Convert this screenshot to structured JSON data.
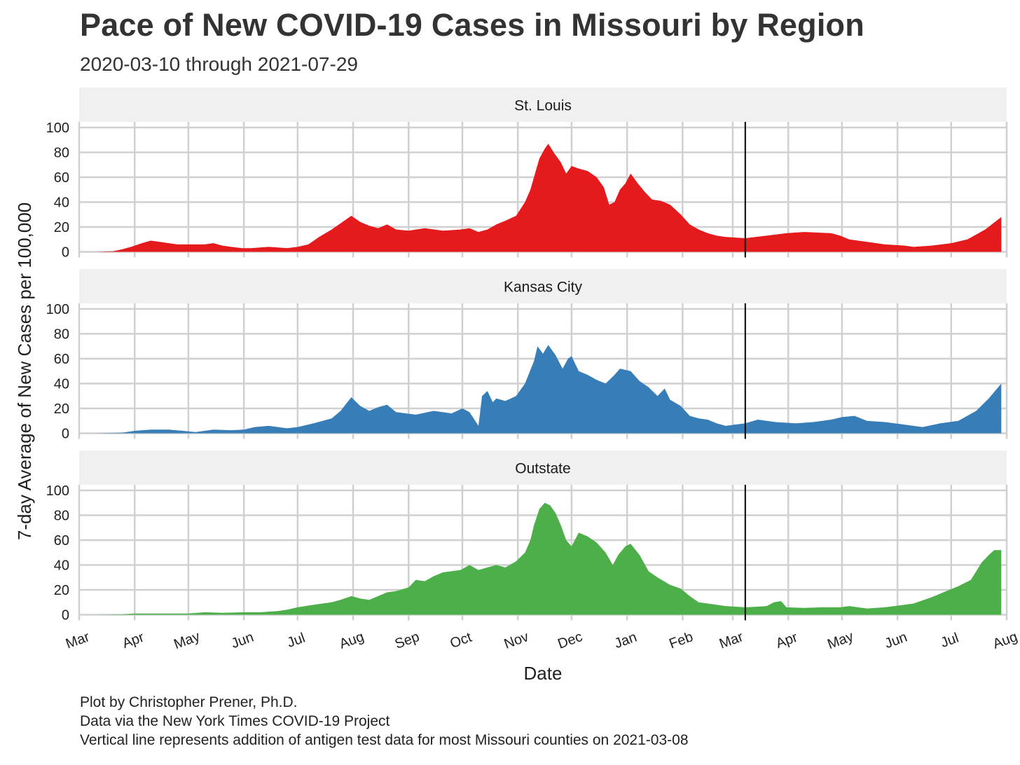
{
  "title": "Pace of New COVID-19 Cases in Missouri by Region",
  "subtitle": "2020-03-10 through 2021-07-29",
  "caption": [
    "Plot by Christopher Prener, Ph.D.",
    "Data via the New York Times COVID-19 Project",
    "Vertical line represents addition of antigen test data for most Missouri counties on 2021-03-08"
  ],
  "chart_data": {
    "type": "area",
    "facets": [
      "St. Louis",
      "Kansas City",
      "Outstate"
    ],
    "xlabel": "Date",
    "ylabel": "7-day Average of New Cases per 100,000",
    "xlim": [
      "2020-03-01",
      "2021-08-01"
    ],
    "ylim": [
      0,
      100
    ],
    "x_ticks": [
      {
        "date": "2020-03-01",
        "label": "Mar"
      },
      {
        "date": "2020-04-01",
        "label": "Apr"
      },
      {
        "date": "2020-05-01",
        "label": "May"
      },
      {
        "date": "2020-06-01",
        "label": "Jun"
      },
      {
        "date": "2020-07-01",
        "label": "Jul"
      },
      {
        "date": "2020-08-01",
        "label": "Aug"
      },
      {
        "date": "2020-09-01",
        "label": "Sep"
      },
      {
        "date": "2020-10-01",
        "label": "Oct"
      },
      {
        "date": "2020-11-01",
        "label": "Nov"
      },
      {
        "date": "2020-12-01",
        "label": "Dec"
      },
      {
        "date": "2021-01-01",
        "label": "Jan"
      },
      {
        "date": "2021-02-01",
        "label": "Feb"
      },
      {
        "date": "2021-03-01",
        "label": "Mar"
      },
      {
        "date": "2021-04-01",
        "label": "Apr"
      },
      {
        "date": "2021-05-01",
        "label": "May"
      },
      {
        "date": "2021-06-01",
        "label": "Jun"
      },
      {
        "date": "2021-07-01",
        "label": "Jul"
      },
      {
        "date": "2021-08-01",
        "label": "Aug"
      }
    ],
    "y_ticks": [
      0,
      20,
      40,
      60,
      80,
      100
    ],
    "vline_date": "2021-03-08",
    "grid": true,
    "legend": "none",
    "series": [
      {
        "facet": "St. Louis",
        "color": "#E41A1C",
        "points": [
          [
            "2020-03-10",
            0
          ],
          [
            "2020-03-20",
            0.5
          ],
          [
            "2020-03-25",
            2
          ],
          [
            "2020-03-30",
            4
          ],
          [
            "2020-04-05",
            7
          ],
          [
            "2020-04-10",
            9
          ],
          [
            "2020-04-15",
            8
          ],
          [
            "2020-04-20",
            7
          ],
          [
            "2020-04-25",
            6
          ],
          [
            "2020-05-01",
            6
          ],
          [
            "2020-05-10",
            6
          ],
          [
            "2020-05-15",
            7
          ],
          [
            "2020-05-20",
            5
          ],
          [
            "2020-05-25",
            4
          ],
          [
            "2020-05-31",
            3
          ],
          [
            "2020-06-05",
            3
          ],
          [
            "2020-06-10",
            3.5
          ],
          [
            "2020-06-15",
            4
          ],
          [
            "2020-06-20",
            3.5
          ],
          [
            "2020-06-25",
            3
          ],
          [
            "2020-07-01",
            4
          ],
          [
            "2020-07-07",
            6
          ],
          [
            "2020-07-13",
            12
          ],
          [
            "2020-07-20",
            18
          ],
          [
            "2020-07-25",
            23
          ],
          [
            "2020-07-31",
            29
          ],
          [
            "2020-08-05",
            24
          ],
          [
            "2020-08-10",
            21
          ],
          [
            "2020-08-15",
            19
          ],
          [
            "2020-08-20",
            22
          ],
          [
            "2020-08-25",
            18
          ],
          [
            "2020-09-01",
            17
          ],
          [
            "2020-09-10",
            19
          ],
          [
            "2020-09-20",
            17
          ],
          [
            "2020-09-30",
            18
          ],
          [
            "2020-10-05",
            19
          ],
          [
            "2020-10-10",
            16
          ],
          [
            "2020-10-15",
            18
          ],
          [
            "2020-10-20",
            22
          ],
          [
            "2020-10-25",
            25
          ],
          [
            "2020-10-31",
            29
          ],
          [
            "2020-11-05",
            40
          ],
          [
            "2020-11-08",
            50
          ],
          [
            "2020-11-10",
            60
          ],
          [
            "2020-11-13",
            75
          ],
          [
            "2020-11-16",
            83
          ],
          [
            "2020-11-18",
            87
          ],
          [
            "2020-11-21",
            80
          ],
          [
            "2020-11-25",
            72
          ],
          [
            "2020-11-28",
            63
          ],
          [
            "2020-12-01",
            69
          ],
          [
            "2020-12-05",
            67
          ],
          [
            "2020-12-10",
            65
          ],
          [
            "2020-12-15",
            60
          ],
          [
            "2020-12-19",
            52
          ],
          [
            "2020-12-22",
            38
          ],
          [
            "2020-12-25",
            40
          ],
          [
            "2020-12-28",
            50
          ],
          [
            "2020-12-31",
            55
          ],
          [
            "2021-01-03",
            63
          ],
          [
            "2021-01-07",
            55
          ],
          [
            "2021-01-11",
            48
          ],
          [
            "2021-01-15",
            42
          ],
          [
            "2021-01-20",
            41
          ],
          [
            "2021-01-25",
            38
          ],
          [
            "2021-01-31",
            30
          ],
          [
            "2021-02-05",
            22
          ],
          [
            "2021-02-10",
            18
          ],
          [
            "2021-02-15",
            15
          ],
          [
            "2021-02-20",
            13
          ],
          [
            "2021-02-25",
            12
          ],
          [
            "2021-03-08",
            11
          ],
          [
            "2021-03-20",
            13
          ],
          [
            "2021-03-31",
            15
          ],
          [
            "2021-04-10",
            16
          ],
          [
            "2021-04-25",
            15
          ],
          [
            "2021-04-30",
            13
          ],
          [
            "2021-05-05",
            10
          ],
          [
            "2021-05-15",
            8
          ],
          [
            "2021-05-25",
            6
          ],
          [
            "2021-06-05",
            5
          ],
          [
            "2021-06-10",
            4
          ],
          [
            "2021-06-20",
            5
          ],
          [
            "2021-07-01",
            7
          ],
          [
            "2021-07-10",
            10
          ],
          [
            "2021-07-20",
            18
          ],
          [
            "2021-07-29",
            28
          ]
        ]
      },
      {
        "facet": "Kansas City",
        "color": "#377EB8",
        "points": [
          [
            "2020-03-10",
            0
          ],
          [
            "2020-03-25",
            0.5
          ],
          [
            "2020-04-01",
            2
          ],
          [
            "2020-04-10",
            3
          ],
          [
            "2020-04-20",
            3
          ],
          [
            "2020-04-28",
            2
          ],
          [
            "2020-05-05",
            1
          ],
          [
            "2020-05-10",
            2
          ],
          [
            "2020-05-15",
            3
          ],
          [
            "2020-05-25",
            2.5
          ],
          [
            "2020-06-01",
            3
          ],
          [
            "2020-06-07",
            5
          ],
          [
            "2020-06-15",
            6
          ],
          [
            "2020-06-25",
            4
          ],
          [
            "2020-07-01",
            5
          ],
          [
            "2020-07-10",
            8
          ],
          [
            "2020-07-20",
            12
          ],
          [
            "2020-07-25",
            18
          ],
          [
            "2020-07-31",
            29
          ],
          [
            "2020-08-05",
            22
          ],
          [
            "2020-08-10",
            18
          ],
          [
            "2020-08-15",
            21
          ],
          [
            "2020-08-20",
            23
          ],
          [
            "2020-08-25",
            17
          ],
          [
            "2020-09-05",
            15
          ],
          [
            "2020-09-15",
            18
          ],
          [
            "2020-09-25",
            16
          ],
          [
            "2020-10-01",
            20
          ],
          [
            "2020-10-05",
            17
          ],
          [
            "2020-10-10",
            6
          ],
          [
            "2020-10-12",
            30
          ],
          [
            "2020-10-15",
            34
          ],
          [
            "2020-10-18",
            25
          ],
          [
            "2020-10-20",
            28
          ],
          [
            "2020-10-25",
            26
          ],
          [
            "2020-10-31",
            30
          ],
          [
            "2020-11-05",
            40
          ],
          [
            "2020-11-10",
            58
          ],
          [
            "2020-11-12",
            70
          ],
          [
            "2020-11-15",
            64
          ],
          [
            "2020-11-18",
            71
          ],
          [
            "2020-11-22",
            63
          ],
          [
            "2020-11-26",
            52
          ],
          [
            "2020-11-29",
            60
          ],
          [
            "2020-12-01",
            62
          ],
          [
            "2020-12-05",
            50
          ],
          [
            "2020-12-10",
            47
          ],
          [
            "2020-12-15",
            43
          ],
          [
            "2020-12-20",
            40
          ],
          [
            "2020-12-25",
            47
          ],
          [
            "2020-12-28",
            52
          ],
          [
            "2021-01-03",
            50
          ],
          [
            "2021-01-08",
            42
          ],
          [
            "2021-01-13",
            37
          ],
          [
            "2021-01-18",
            30
          ],
          [
            "2021-01-22",
            36
          ],
          [
            "2021-01-25",
            27
          ],
          [
            "2021-01-31",
            22
          ],
          [
            "2021-02-05",
            14
          ],
          [
            "2021-02-10",
            12
          ],
          [
            "2021-02-15",
            11
          ],
          [
            "2021-02-20",
            8
          ],
          [
            "2021-02-25",
            6
          ],
          [
            "2021-03-08",
            8
          ],
          [
            "2021-03-15",
            11
          ],
          [
            "2021-03-25",
            9
          ],
          [
            "2021-04-05",
            8
          ],
          [
            "2021-04-15",
            9
          ],
          [
            "2021-04-25",
            11
          ],
          [
            "2021-05-01",
            13
          ],
          [
            "2021-05-08",
            14
          ],
          [
            "2021-05-15",
            10
          ],
          [
            "2021-05-25",
            9
          ],
          [
            "2021-06-05",
            7
          ],
          [
            "2021-06-15",
            5
          ],
          [
            "2021-06-25",
            8
          ],
          [
            "2021-07-05",
            10
          ],
          [
            "2021-07-15",
            18
          ],
          [
            "2021-07-22",
            28
          ],
          [
            "2021-07-29",
            40
          ]
        ]
      },
      {
        "facet": "Outstate",
        "color": "#4DAF4A",
        "points": [
          [
            "2020-03-10",
            0
          ],
          [
            "2020-03-25",
            0.3
          ],
          [
            "2020-04-01",
            1
          ],
          [
            "2020-04-15",
            1
          ],
          [
            "2020-05-01",
            1
          ],
          [
            "2020-05-10",
            2
          ],
          [
            "2020-05-20",
            1.5
          ],
          [
            "2020-06-01",
            2
          ],
          [
            "2020-06-10",
            2
          ],
          [
            "2020-06-20",
            3
          ],
          [
            "2020-06-25",
            4
          ],
          [
            "2020-07-01",
            6
          ],
          [
            "2020-07-10",
            8
          ],
          [
            "2020-07-20",
            10
          ],
          [
            "2020-07-25",
            12
          ],
          [
            "2020-07-31",
            15
          ],
          [
            "2020-08-05",
            13
          ],
          [
            "2020-08-10",
            12
          ],
          [
            "2020-08-15",
            15
          ],
          [
            "2020-08-20",
            18
          ],
          [
            "2020-08-25",
            19
          ],
          [
            "2020-09-01",
            22
          ],
          [
            "2020-09-05",
            28
          ],
          [
            "2020-09-10",
            27
          ],
          [
            "2020-09-15",
            31
          ],
          [
            "2020-09-20",
            34
          ],
          [
            "2020-09-25",
            35
          ],
          [
            "2020-09-30",
            36
          ],
          [
            "2020-10-05",
            40
          ],
          [
            "2020-10-10",
            36
          ],
          [
            "2020-10-15",
            38
          ],
          [
            "2020-10-20",
            40
          ],
          [
            "2020-10-25",
            38
          ],
          [
            "2020-10-31",
            43
          ],
          [
            "2020-11-05",
            50
          ],
          [
            "2020-11-08",
            60
          ],
          [
            "2020-11-10",
            72
          ],
          [
            "2020-11-13",
            85
          ],
          [
            "2020-11-16",
            90
          ],
          [
            "2020-11-19",
            88
          ],
          [
            "2020-11-22",
            82
          ],
          [
            "2020-11-25",
            72
          ],
          [
            "2020-11-28",
            60
          ],
          [
            "2020-12-01",
            55
          ],
          [
            "2020-12-05",
            66
          ],
          [
            "2020-12-10",
            63
          ],
          [
            "2020-12-15",
            58
          ],
          [
            "2020-12-20",
            50
          ],
          [
            "2020-12-24",
            40
          ],
          [
            "2020-12-27",
            48
          ],
          [
            "2020-12-31",
            55
          ],
          [
            "2021-01-03",
            57
          ],
          [
            "2021-01-08",
            48
          ],
          [
            "2021-01-13",
            35
          ],
          [
            "2021-01-18",
            30
          ],
          [
            "2021-01-25",
            24
          ],
          [
            "2021-01-31",
            21
          ],
          [
            "2021-02-05",
            15
          ],
          [
            "2021-02-10",
            10
          ],
          [
            "2021-02-15",
            9
          ],
          [
            "2021-02-20",
            8
          ],
          [
            "2021-02-25",
            7
          ],
          [
            "2021-03-08",
            6
          ],
          [
            "2021-03-15",
            6.5
          ],
          [
            "2021-03-20",
            7
          ],
          [
            "2021-03-24",
            10
          ],
          [
            "2021-03-28",
            11
          ],
          [
            "2021-03-31",
            6
          ],
          [
            "2021-04-10",
            5.5
          ],
          [
            "2021-04-20",
            6
          ],
          [
            "2021-04-30",
            6
          ],
          [
            "2021-05-05",
            7
          ],
          [
            "2021-05-15",
            5
          ],
          [
            "2021-05-25",
            6
          ],
          [
            "2021-06-05",
            8
          ],
          [
            "2021-06-10",
            9
          ],
          [
            "2021-06-20",
            14
          ],
          [
            "2021-06-30",
            20
          ],
          [
            "2021-07-05",
            23
          ],
          [
            "2021-07-12",
            28
          ],
          [
            "2021-07-18",
            42
          ],
          [
            "2021-07-22",
            48
          ],
          [
            "2021-07-25",
            52
          ],
          [
            "2021-07-29",
            52
          ]
        ]
      }
    ]
  }
}
